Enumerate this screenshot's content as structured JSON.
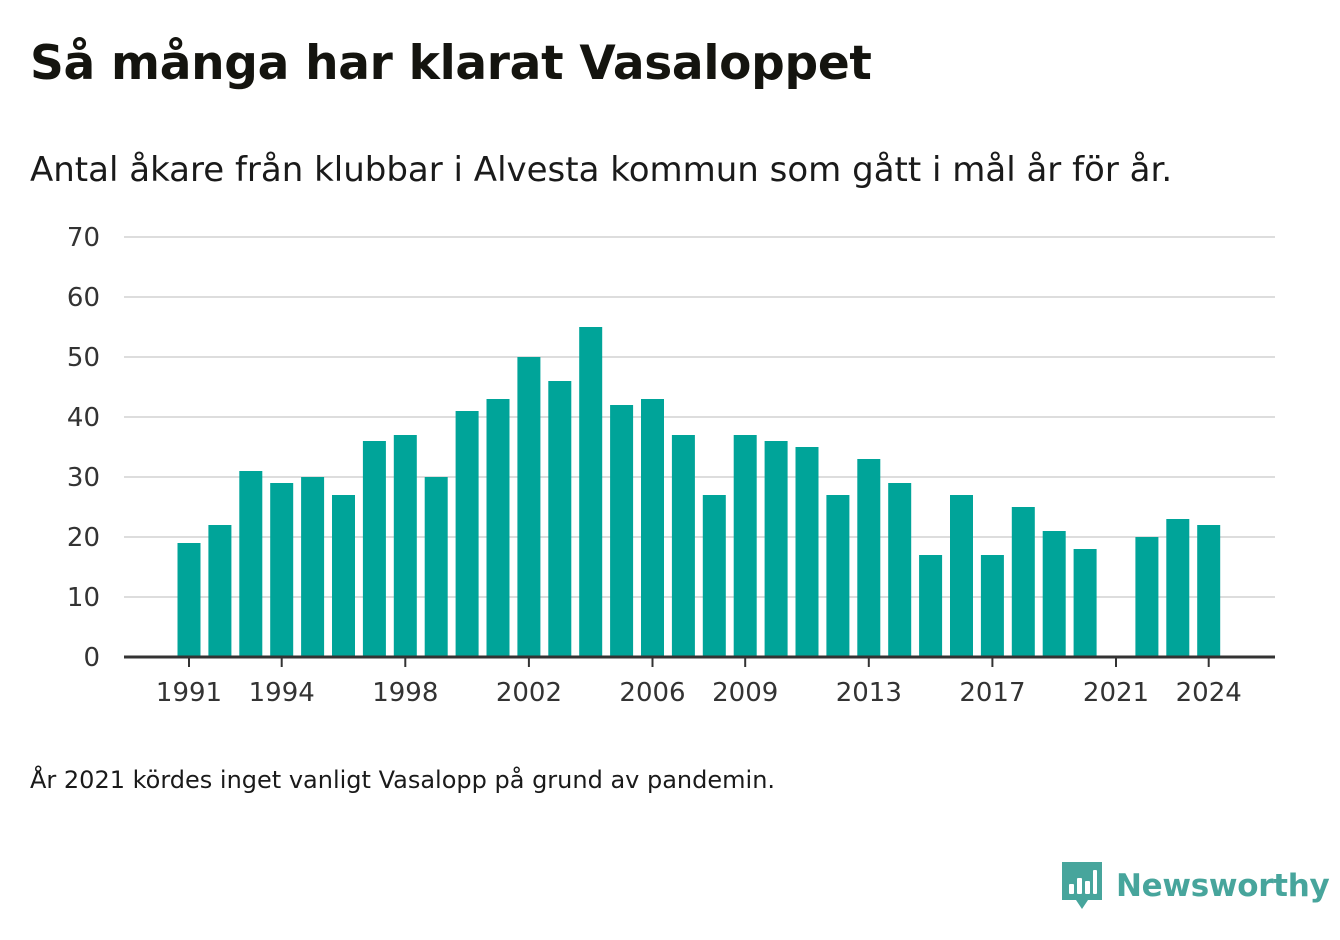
{
  "title": "Så många har klarat Vasaloppet",
  "subtitle": "Antal åkare från klubbar i Alvesta kommun som gått i mål år för år.",
  "footnote": "År 2021 kördes inget vanligt Vasalopp på grund av pandemin.",
  "brand": {
    "name": "Newsworthy",
    "icon": "newsworthy-logo-icon",
    "color": "#47a59c"
  },
  "chart_data": {
    "type": "bar",
    "bar_color": "#00a499",
    "x": [
      1991,
      1992,
      1993,
      1994,
      1995,
      1996,
      1997,
      1998,
      1999,
      2000,
      2001,
      2002,
      2003,
      2004,
      2005,
      2006,
      2007,
      2008,
      2009,
      2010,
      2011,
      2012,
      2013,
      2014,
      2015,
      2016,
      2017,
      2018,
      2019,
      2020,
      2021,
      2022,
      2023,
      2024
    ],
    "values": [
      19,
      22,
      31,
      29,
      30,
      27,
      36,
      37,
      30,
      41,
      43,
      50,
      46,
      55,
      42,
      43,
      37,
      27,
      37,
      36,
      35,
      27,
      33,
      29,
      17,
      27,
      17,
      25,
      21,
      18,
      null,
      20,
      23,
      22
    ],
    "x_ticks": [
      "1991",
      "1994",
      "1998",
      "2002",
      "2006",
      "2009",
      "2013",
      "2017",
      "2021",
      "2024"
    ],
    "y_ticks": [
      "0",
      "10",
      "20",
      "30",
      "40",
      "50",
      "60",
      "70"
    ],
    "ylim": [
      0,
      70
    ],
    "grid": true,
    "legend": "none",
    "xlabel": "",
    "ylabel": ""
  }
}
